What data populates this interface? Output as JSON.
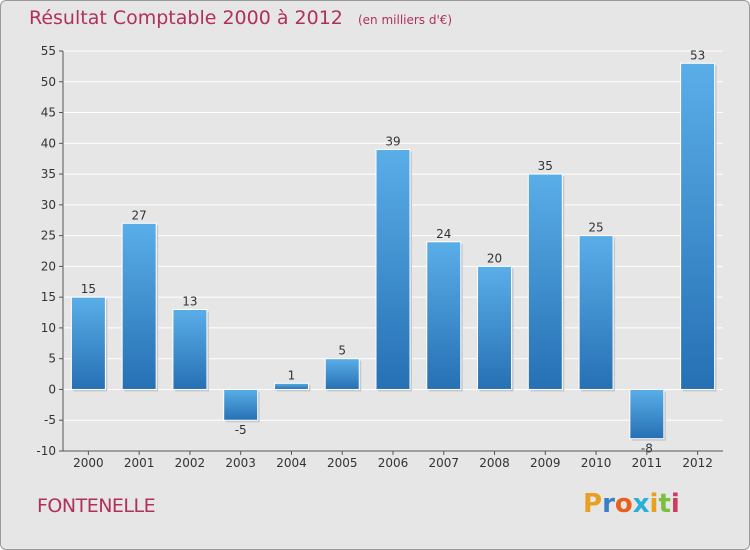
{
  "chart_data": {
    "type": "bar",
    "title": "Résultat Comptable 2000 à 2012",
    "subtitle": "(en milliers d'€)",
    "categories": [
      "2000",
      "2001",
      "2002",
      "2003",
      "2004",
      "2005",
      "2006",
      "2007",
      "2008",
      "2009",
      "2010",
      "2011",
      "2012"
    ],
    "values": [
      15,
      27,
      13,
      -5,
      1,
      5,
      39,
      24,
      20,
      35,
      25,
      -8,
      53
    ],
    "xlabel": "",
    "ylabel": "",
    "ylim": [
      -10,
      55
    ],
    "yticks": [
      -10,
      -5,
      0,
      5,
      10,
      15,
      20,
      25,
      30,
      35,
      40,
      45,
      50,
      55
    ],
    "grid": true,
    "bar_color": "#3a8fd0",
    "bar_color_light": "#5aaee8",
    "bar_color_dark": "#2670b4"
  },
  "commune": "FONTENELLE",
  "logo": {
    "letters": [
      "P",
      "r",
      "o",
      "x",
      "i",
      "t",
      "i"
    ],
    "colors": [
      "#e8a020",
      "#3a7fc8",
      "#e86020",
      "#2ab0d8",
      "#e8a020",
      "#7ac040",
      "#d03a60"
    ]
  }
}
